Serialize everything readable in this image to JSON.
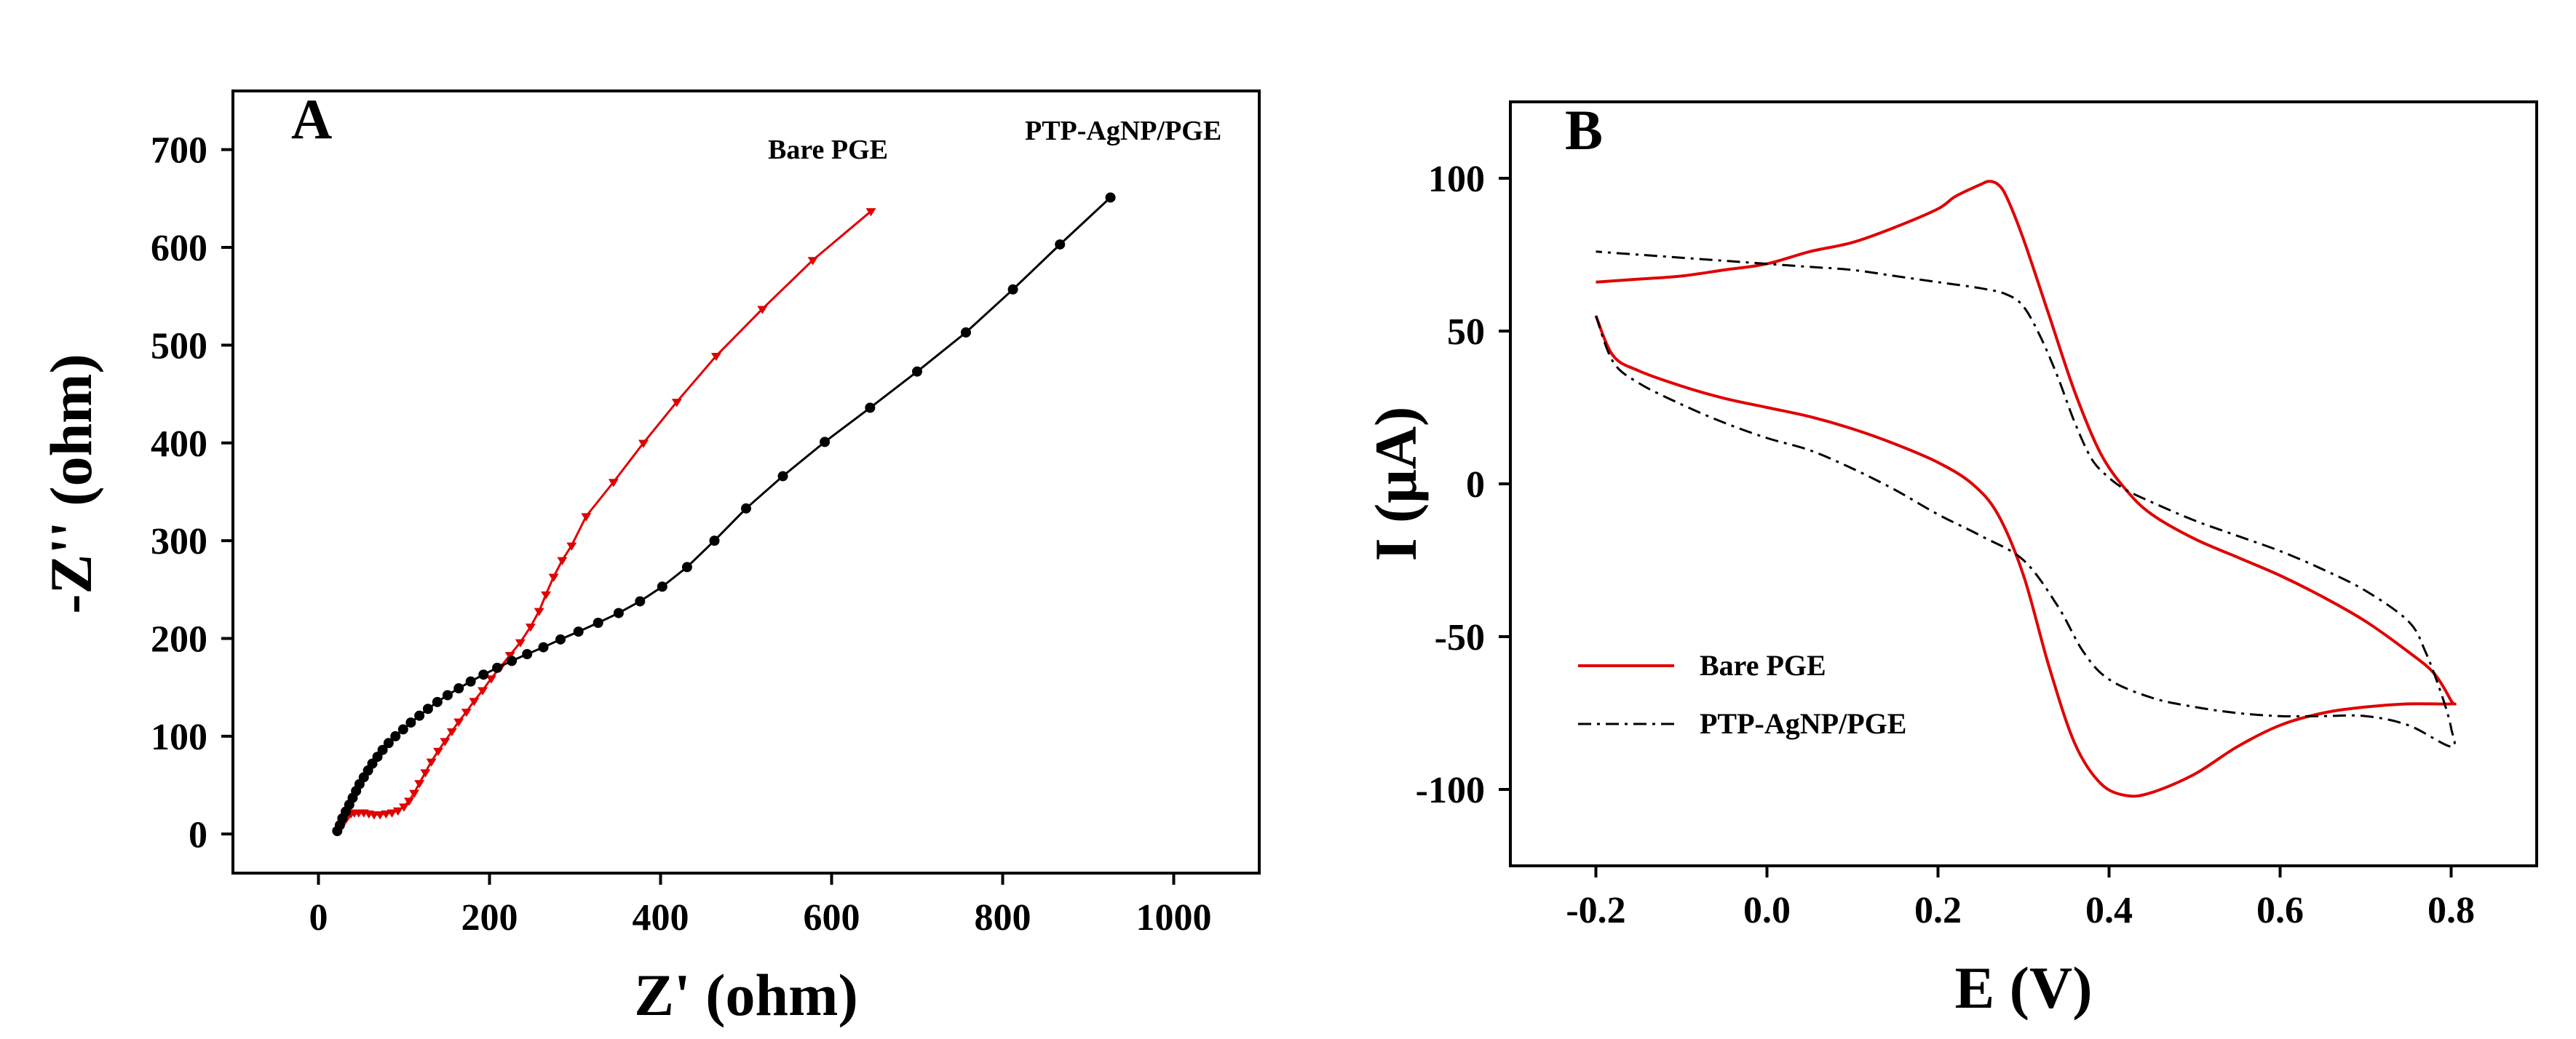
{
  "chart_data": [
    {
      "panel": "A",
      "type": "scatter",
      "xlabel": "Z' (ohm)",
      "ylabel": "-Z'' (ohm)",
      "xlim": [
        -100,
        1100
      ],
      "ylim": [
        -40,
        760
      ],
      "xticks": [
        0,
        200,
        400,
        600,
        800,
        1000
      ],
      "yticks": [
        0,
        100,
        200,
        300,
        400,
        500,
        600,
        700
      ],
      "series": [
        {
          "name": "Bare PGE",
          "color": "#e00000",
          "marker": "triangle",
          "points": [
            [
              22,
              3
            ],
            [
              25,
              6
            ],
            [
              28,
              10
            ],
            [
              31,
              14
            ],
            [
              34,
              18
            ],
            [
              38,
              21
            ],
            [
              42,
              22
            ],
            [
              47,
              22
            ],
            [
              53,
              22
            ],
            [
              59,
              21
            ],
            [
              65,
              20
            ],
            [
              72,
              20
            ],
            [
              79,
              21
            ],
            [
              86,
              22
            ],
            [
              93,
              24
            ],
            [
              100,
              28
            ],
            [
              106,
              34
            ],
            [
              112,
              42
            ],
            [
              118,
              52
            ],
            [
              125,
              63
            ],
            [
              132,
              74
            ],
            [
              140,
              85
            ],
            [
              148,
              95
            ],
            [
              156,
              105
            ],
            [
              164,
              115
            ],
            [
              173,
              125
            ],
            [
              182,
              136
            ],
            [
              192,
              147
            ],
            [
              202,
              159
            ],
            [
              213,
              171
            ],
            [
              224,
              183
            ],
            [
              236,
              196
            ],
            [
              248,
              212
            ],
            [
              258,
              228
            ],
            [
              266,
              245
            ],
            [
              275,
              263
            ],
            [
              285,
              280
            ],
            [
              296,
              295
            ],
            [
              313,
              325
            ],
            [
              345,
              360
            ],
            [
              380,
              400
            ],
            [
              419,
              442
            ],
            [
              465,
              489
            ],
            [
              519,
              537
            ],
            [
              578,
              587
            ],
            [
              646,
              637
            ]
          ],
          "label": "Bare PGE"
        },
        {
          "name": "PTP-AgNP/PGE",
          "color": "#000000",
          "marker": "circle",
          "points": [
            [
              22,
              3
            ],
            [
              25,
              9
            ],
            [
              28,
              16
            ],
            [
              32,
              23
            ],
            [
              36,
              30
            ],
            [
              40,
              37
            ],
            [
              44,
              44
            ],
            [
              48,
              51
            ],
            [
              53,
              58
            ],
            [
              58,
              65
            ],
            [
              63,
              72
            ],
            [
              69,
              79
            ],
            [
              75,
              86
            ],
            [
              82,
              93
            ],
            [
              90,
              100
            ],
            [
              99,
              107
            ],
            [
              108,
              114
            ],
            [
              118,
              121
            ],
            [
              128,
              128
            ],
            [
              139,
              135
            ],
            [
              151,
              142
            ],
            [
              164,
              149
            ],
            [
              178,
              156
            ],
            [
              193,
              163
            ],
            [
              209,
              170
            ],
            [
              226,
              177
            ],
            [
              244,
              184
            ],
            [
              263,
              191
            ],
            [
              283,
              199
            ],
            [
              304,
              207
            ],
            [
              327,
              216
            ],
            [
              351,
              226
            ],
            [
              376,
              238
            ],
            [
              402,
              253
            ],
            [
              431,
              273
            ],
            [
              463,
              300
            ],
            [
              500,
              333
            ],
            [
              543,
              366
            ],
            [
              592,
              401
            ],
            [
              645,
              436
            ],
            [
              700,
              473
            ],
            [
              757,
              513
            ],
            [
              812,
              557
            ],
            [
              867,
              603
            ],
            [
              926,
              651
            ]
          ],
          "label": "PTP-AgNP/PGE"
        }
      ]
    },
    {
      "panel": "B",
      "type": "line",
      "xlabel": "E (V)",
      "ylabel": "I (μA)",
      "xlim": [
        -0.3,
        0.9
      ],
      "ylim": [
        -125,
        125
      ],
      "xticks": [
        -0.2,
        0.0,
        0.2,
        0.4,
        0.6,
        0.8
      ],
      "xtick_labels": [
        "-0.2",
        "0.0",
        "0.2",
        "0.4",
        "0.6",
        "0.8"
      ],
      "yticks": [
        -100,
        -50,
        0,
        50,
        100
      ],
      "yticks_labels": [
        "-100",
        "-50",
        "0",
        "50",
        "100"
      ],
      "legend": [
        "Bare PGE",
        "PTP-AgNP/PGE"
      ],
      "series": [
        {
          "name": "Bare PGE",
          "color": "#e00000",
          "dash": "solid",
          "points": [
            [
              -0.2,
              55
            ],
            [
              -0.18,
              42
            ],
            [
              -0.15,
              37
            ],
            [
              -0.1,
              32
            ],
            [
              -0.05,
              28
            ],
            [
              0.0,
              25
            ],
            [
              0.05,
              22
            ],
            [
              0.1,
              18
            ],
            [
              0.15,
              13
            ],
            [
              0.2,
              7
            ],
            [
              0.24,
              0
            ],
            [
              0.27,
              -10
            ],
            [
              0.3,
              -30
            ],
            [
              0.33,
              -60
            ],
            [
              0.36,
              -85
            ],
            [
              0.39,
              -98
            ],
            [
              0.42,
              -102
            ],
            [
              0.45,
              -101
            ],
            [
              0.5,
              -95
            ],
            [
              0.55,
              -86
            ],
            [
              0.6,
              -79
            ],
            [
              0.65,
              -75
            ],
            [
              0.7,
              -73
            ],
            [
              0.75,
              -72
            ],
            [
              0.8,
              -72
            ],
            [
              0.8,
              -71
            ],
            [
              0.78,
              -62
            ],
            [
              0.75,
              -55
            ],
            [
              0.7,
              -45
            ],
            [
              0.65,
              -37
            ],
            [
              0.6,
              -30
            ],
            [
              0.55,
              -24
            ],
            [
              0.5,
              -18
            ],
            [
              0.45,
              -10
            ],
            [
              0.42,
              -2
            ],
            [
              0.39,
              10
            ],
            [
              0.36,
              30
            ],
            [
              0.33,
              55
            ],
            [
              0.3,
              80
            ],
            [
              0.28,
              94
            ],
            [
              0.27,
              98
            ],
            [
              0.26,
              99
            ],
            [
              0.25,
              98
            ],
            [
              0.22,
              94
            ],
            [
              0.2,
              90
            ],
            [
              0.15,
              84
            ],
            [
              0.1,
              79
            ],
            [
              0.05,
              76
            ],
            [
              0.0,
              72
            ],
            [
              -0.05,
              70
            ],
            [
              -0.1,
              68
            ],
            [
              -0.15,
              67
            ],
            [
              -0.2,
              66
            ]
          ]
        },
        {
          "name": "PTP-AgNP/PGE",
          "color": "#000000",
          "dash": "dash-dot",
          "points": [
            [
              -0.2,
              55
            ],
            [
              -0.18,
              40
            ],
            [
              -0.15,
              33
            ],
            [
              -0.1,
              26
            ],
            [
              -0.05,
              20
            ],
            [
              0.0,
              15
            ],
            [
              0.05,
              11
            ],
            [
              0.1,
              5
            ],
            [
              0.15,
              -2
            ],
            [
              0.2,
              -10
            ],
            [
              0.25,
              -17
            ],
            [
              0.3,
              -25
            ],
            [
              0.34,
              -40
            ],
            [
              0.37,
              -55
            ],
            [
              0.4,
              -64
            ],
            [
              0.45,
              -70
            ],
            [
              0.5,
              -73
            ],
            [
              0.55,
              -75
            ],
            [
              0.6,
              -76
            ],
            [
              0.65,
              -76
            ],
            [
              0.7,
              -76
            ],
            [
              0.75,
              -79
            ],
            [
              0.8,
              -86
            ],
            [
              0.8,
              -80
            ],
            [
              0.79,
              -70
            ],
            [
              0.77,
              -55
            ],
            [
              0.75,
              -45
            ],
            [
              0.7,
              -35
            ],
            [
              0.65,
              -28
            ],
            [
              0.6,
              -22
            ],
            [
              0.55,
              -17
            ],
            [
              0.5,
              -12
            ],
            [
              0.45,
              -6
            ],
            [
              0.42,
              -2
            ],
            [
              0.4,
              2
            ],
            [
              0.38,
              8
            ],
            [
              0.36,
              20
            ],
            [
              0.34,
              35
            ],
            [
              0.32,
              48
            ],
            [
              0.3,
              58
            ],
            [
              0.28,
              62
            ],
            [
              0.25,
              64
            ],
            [
              0.2,
              66
            ],
            [
              0.15,
              68
            ],
            [
              0.1,
              70
            ],
            [
              0.05,
              71
            ],
            [
              0.0,
              72
            ],
            [
              -0.05,
              73
            ],
            [
              -0.1,
              74
            ],
            [
              -0.15,
              75
            ],
            [
              -0.2,
              76
            ]
          ]
        }
      ]
    }
  ]
}
